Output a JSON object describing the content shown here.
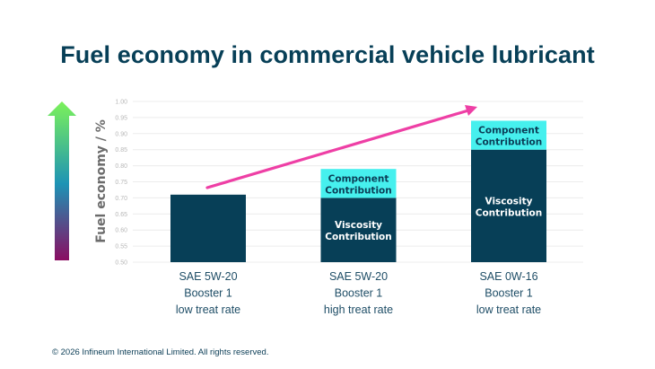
{
  "title": "Fuel economy in commercial vehicle lubricant",
  "footer": "© 2026 Infineum International Limited. All rights reserved.",
  "colors": {
    "viscosity": "#073f57",
    "component": "#46f0ee",
    "trend_arrow": "#ee3fa5",
    "gradient_top": "#7cf25a",
    "gradient_mid": "#1d93b5",
    "gradient_bottom": "#8a0d62",
    "grid": "#ececec"
  },
  "chart_data": {
    "type": "bar",
    "stacked": true,
    "title": "Fuel economy in commercial vehicle lubricant",
    "xlabel": "",
    "ylabel": "Fuel economy / %",
    "ylim": [
      0.5,
      1.0
    ],
    "yticks": [
      "0.50",
      "0.55",
      "0.60",
      "0.65",
      "0.70",
      "0.75",
      "0.80",
      "0.85",
      "0.90",
      "0.95",
      "1.00"
    ],
    "grid": true,
    "categories": [
      [
        "SAE 5W-20",
        "Booster 1",
        "low treat rate"
      ],
      [
        "SAE 5W-20",
        "Booster 1",
        "high treat rate"
      ],
      [
        "SAE 0W-16",
        "Booster 1",
        "low treat rate"
      ]
    ],
    "series": [
      {
        "name": "Viscosity Contribution",
        "label_lines": [
          "Viscosity",
          "Contribution"
        ],
        "values": [
          0.71,
          0.7,
          0.85
        ],
        "show_label": [
          false,
          true,
          true
        ]
      },
      {
        "name": "Component Contribution",
        "label_lines": [
          "Component",
          "Contribution"
        ],
        "values": [
          0.0,
          0.09,
          0.09
        ],
        "show_label": [
          false,
          true,
          true
        ]
      }
    ],
    "annotations": [
      {
        "type": "trend-arrow",
        "direction": "up-right",
        "from_category": 0,
        "to_category": 2
      },
      {
        "type": "gradient-arrow",
        "direction": "up",
        "meaning": "higher fuel economy is better"
      }
    ]
  }
}
